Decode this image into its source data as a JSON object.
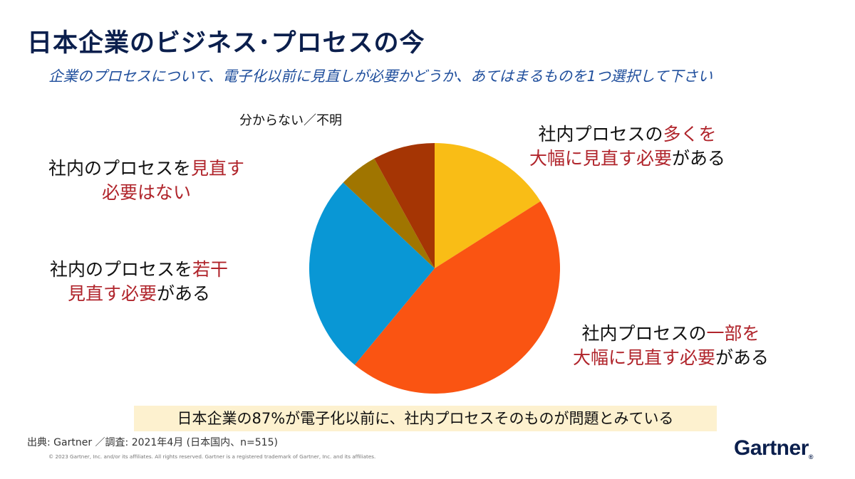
{
  "header": {
    "title": "日本企業のビジネス･プロセスの今",
    "subtitle": "企業のプロセスについて、電子化以前に見直しが必要かどうか、あてはまるものを1つ選択して下さい"
  },
  "chart_data": {
    "type": "pie",
    "start_angle_deg": 0,
    "direction": "clockwise",
    "slices": [
      {
        "key": "many",
        "value": 16,
        "color": "#f9bd16"
      },
      {
        "key": "part",
        "value": 45,
        "color": "#fa5412"
      },
      {
        "key": "slight",
        "value": 26,
        "color": "#0997d5"
      },
      {
        "key": "none",
        "value": 5,
        "color": "#a07500"
      },
      {
        "key": "unknown",
        "value": 8,
        "color": "#a53504"
      }
    ],
    "labels": {
      "unknown": {
        "lines": [
          [
            {
              "t": "分からない／不明",
              "hl": false
            }
          ]
        ]
      },
      "none": {
        "lines": [
          [
            {
              "t": "社内のプロセスを",
              "hl": false
            },
            {
              "t": "見直す",
              "hl": true
            }
          ],
          [
            {
              "t": "必要はない",
              "hl": true
            }
          ]
        ]
      },
      "slight": {
        "lines": [
          [
            {
              "t": "社内のプロセスを",
              "hl": false
            },
            {
              "t": "若干",
              "hl": true
            }
          ],
          [
            {
              "t": "見直す必要",
              "hl": true
            },
            {
              "t": "がある",
              "hl": false
            }
          ]
        ]
      },
      "many": {
        "lines": [
          [
            {
              "t": "社内プロセスの",
              "hl": false
            },
            {
              "t": "多くを",
              "hl": true
            }
          ],
          [
            {
              "t": "大幅に見直す必要",
              "hl": true
            },
            {
              "t": "がある",
              "hl": false
            }
          ]
        ]
      },
      "part": {
        "lines": [
          [
            {
              "t": "社内プロセスの",
              "hl": false
            },
            {
              "t": "一部を",
              "hl": true
            }
          ],
          [
            {
              "t": "大幅に見直す必要",
              "hl": true
            },
            {
              "t": "がある",
              "hl": false
            }
          ]
        ]
      }
    },
    "highlight_color": "#b0242b"
  },
  "callout": "日本企業の87%が電子化以前に、社内プロセスそのものが問題とみている",
  "footer": {
    "source": "出典: Gartner ／調査: 2021年4月 (日本国内、n=515)",
    "copyright": "© 2023 Gartner, Inc. and/or its affiliates. All rights reserved. Gartner is a registered trademark of Gartner, Inc. and its affiliates.",
    "logo_text": "Gartner",
    "logo_mark": "®"
  }
}
